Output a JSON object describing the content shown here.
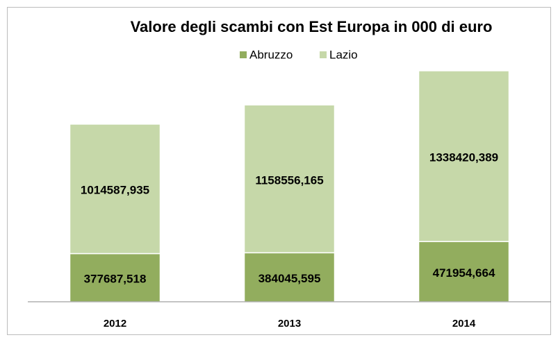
{
  "chart_data": {
    "type": "stacked_bar",
    "title": "Valore degli scambi con Est Europa in 000 di euro",
    "categories": [
      "2012",
      "2013",
      "2014"
    ],
    "series": [
      {
        "name": "Abruzzo",
        "color": "#92ad5e",
        "values": [
          377687.518,
          384045.595,
          471954.664
        ],
        "value_labels": [
          "377687,518",
          "384045,595",
          "471954,664"
        ]
      },
      {
        "name": "Lazio",
        "color": "#c6d8a9",
        "values": [
          1014587.935,
          1158556.165,
          1338420.389
        ],
        "value_labels": [
          "1014587,935",
          "1158556,165",
          "1338420,389"
        ]
      }
    ],
    "legend": "top"
  }
}
